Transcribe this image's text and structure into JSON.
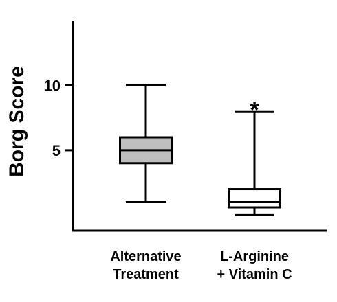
{
  "chart_data": {
    "type": "box",
    "ylabel": "Borg Score",
    "ylim": [
      -1.2,
      15
    ],
    "yticks": [
      5,
      10
    ],
    "ytick_labels": [
      "5",
      "10"
    ],
    "grid": false,
    "categories": [
      {
        "lines": [
          "Alternative",
          "Treatment"
        ]
      },
      {
        "lines": [
          "L-Arginine",
          "+ Vitamin C"
        ]
      }
    ],
    "boxes": [
      {
        "min": 1,
        "q1": 4,
        "median": 5,
        "q3": 6,
        "max": 10,
        "fill": "#bfbfbf"
      },
      {
        "min": 0,
        "q1": 0.6,
        "median": 1,
        "q3": 2,
        "max": 8,
        "fill": "#ffffff"
      }
    ],
    "annotations": [
      {
        "category_index": 1,
        "text": "*",
        "y": 9
      }
    ]
  }
}
